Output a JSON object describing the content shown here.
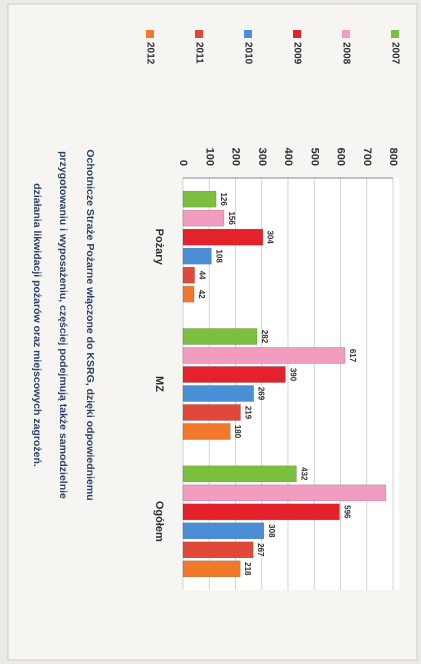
{
  "chart_data": {
    "type": "bar",
    "categories": [
      "Pożary",
      "MZ",
      "Ogółem"
    ],
    "series": [
      {
        "name": "2007",
        "color": "#7cbf3e",
        "values": [
          126,
          282,
          432
        ]
      },
      {
        "name": "2008",
        "color": "#f29cc0",
        "values": [
          156,
          617,
          773
        ],
        "value_labels": [
          "156",
          "617",
          null
        ]
      },
      {
        "name": "2009",
        "color": "#e3222b",
        "values": [
          304,
          390,
          596
        ]
      },
      {
        "name": "2010",
        "color": "#4a8fd6",
        "values": [
          108,
          269,
          308
        ]
      },
      {
        "name": "2011",
        "color": "#e0483a",
        "values": [
          44,
          219,
          267
        ]
      },
      {
        "name": "2012",
        "color": "#f07a2a",
        "values": [
          42,
          180,
          218
        ]
      }
    ],
    "ylim": [
      0,
      800
    ],
    "yticks": [
      0,
      100,
      200,
      300,
      400,
      500,
      600,
      700,
      800
    ],
    "grid": true,
    "caption": [
      "Ochotnicze Straże Pożarne włączone do KSRG, dzięki odpowiedniemu",
      "przygotowaniu i wyposażeniu, częściej podejmują także samodzielnie",
      "działania likwidacji pożarów oraz miejscowych zagrożeń."
    ]
  }
}
